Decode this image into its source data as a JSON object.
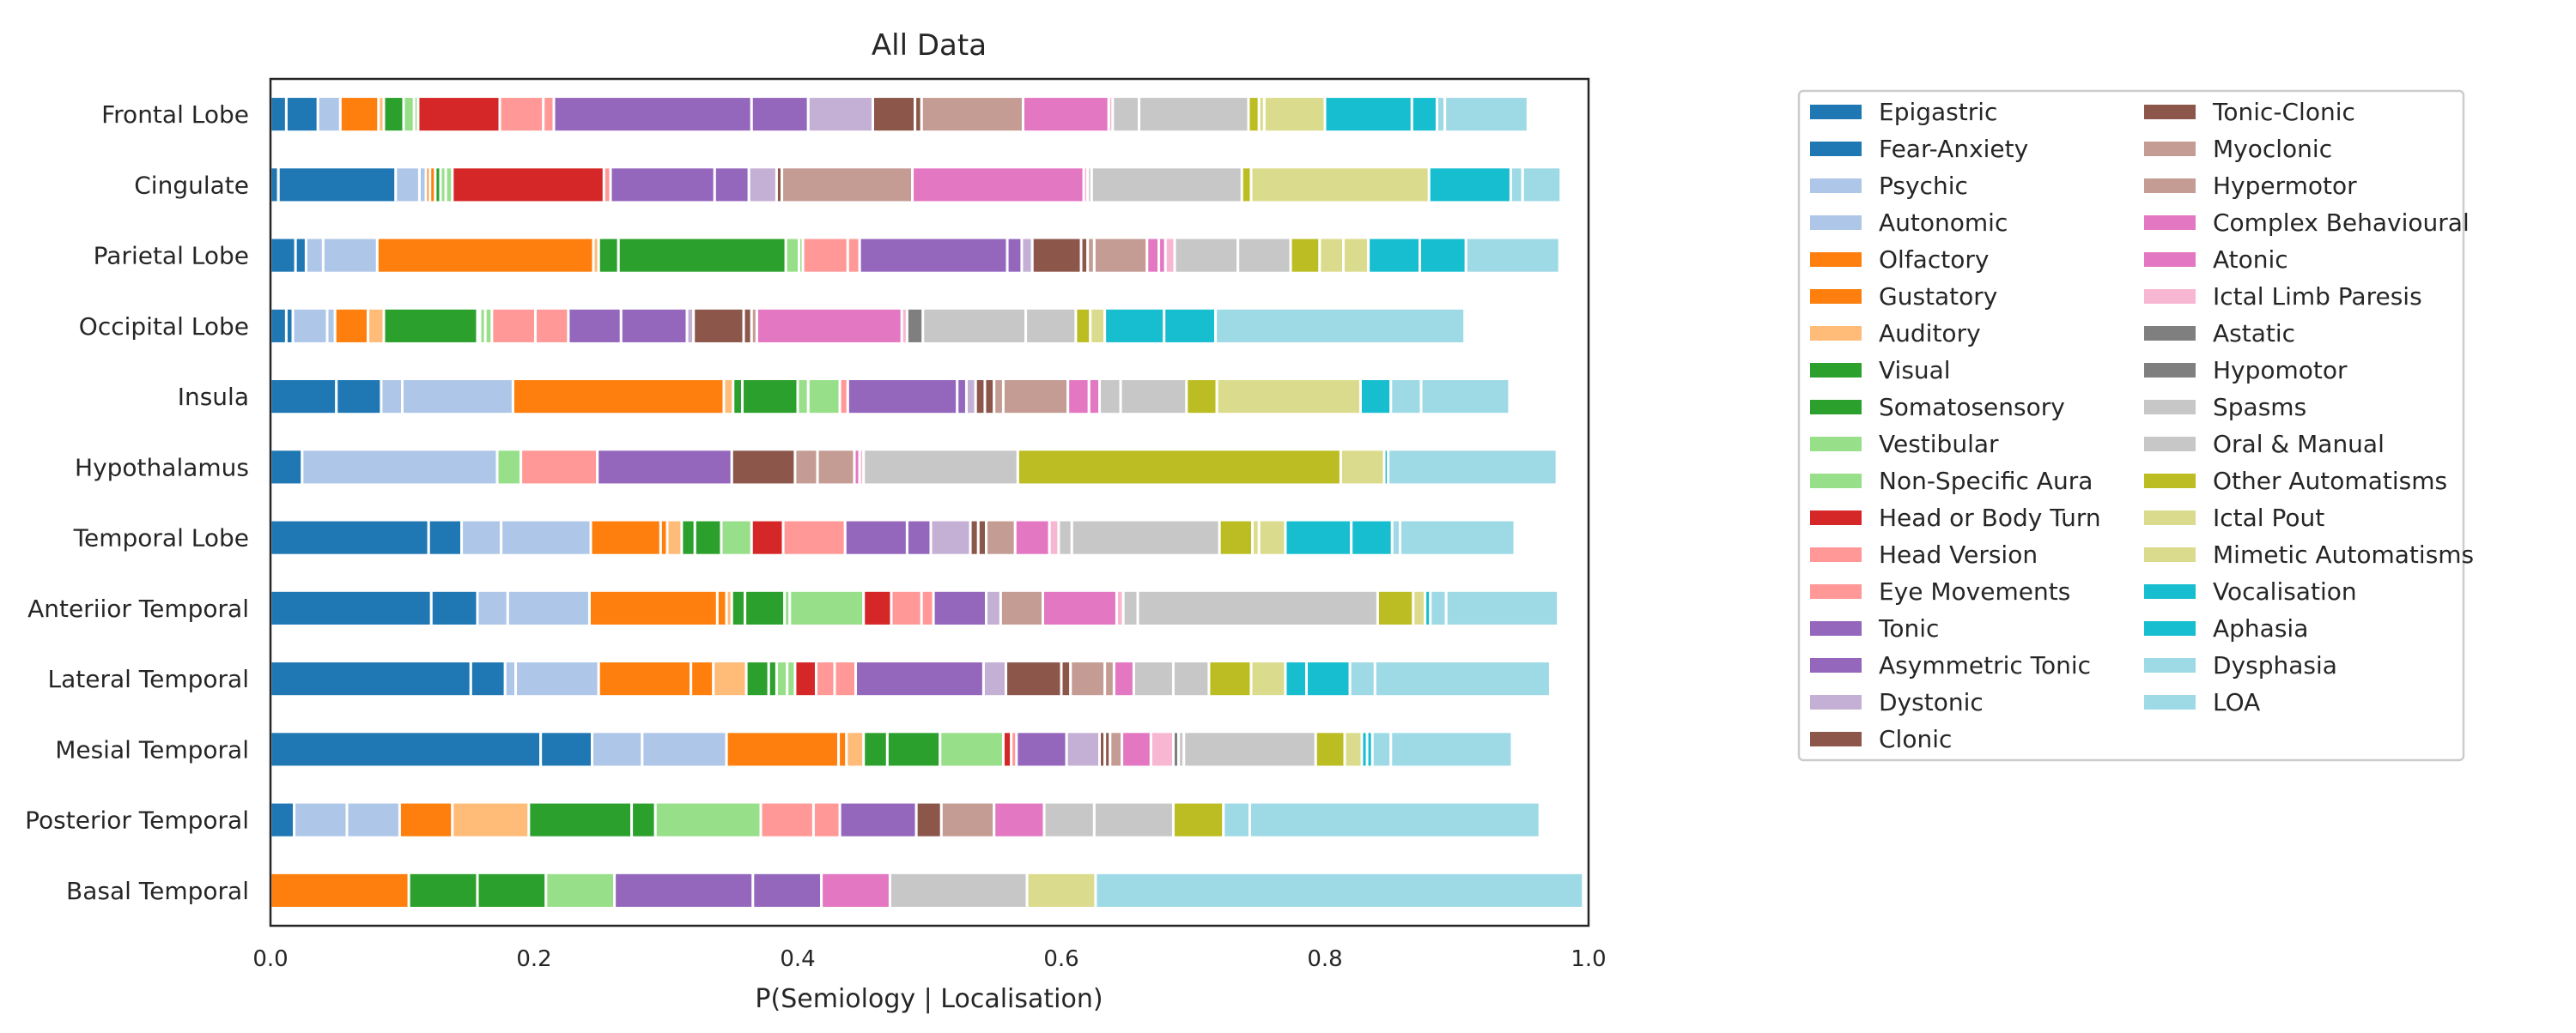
{
  "chart_data": {
    "type": "bar",
    "orientation": "horizontal",
    "stacked": true,
    "title": "All Data",
    "xlabel": "P(Semiology | Localisation)",
    "ylabel": "",
    "xlim": [
      0,
      1
    ],
    "xticks": [
      "0.0",
      "0.2",
      "0.4",
      "0.6",
      "0.8",
      "1.0"
    ],
    "grid": false,
    "legend_position": "right",
    "categories": [
      "Frontal Lobe",
      "Cingulate",
      "Parietal Lobe",
      "Occipital Lobe",
      "Insula",
      "Hypothalamus",
      "Temporal Lobe",
      "Anteriior Temporal",
      "Lateral Temporal",
      "Mesial Temporal",
      "Posterior Temporal",
      "Basal Temporal"
    ],
    "series": [
      {
        "name": "Epigastric",
        "color": "#1f77b4",
        "values": [
          0.012,
          0.006,
          0.019,
          0.012,
          0.05,
          0.024,
          0.12,
          0.122,
          0.152,
          0.205,
          0.018,
          0.0
        ]
      },
      {
        "name": "Fear-Anxiety",
        "color": "#1f77b4",
        "values": [
          0.024,
          0.089,
          0.008,
          0.005,
          0.034,
          0.0,
          0.025,
          0.035,
          0.026,
          0.039,
          0.0,
          0.0
        ]
      },
      {
        "name": "Psychic",
        "color": "#aec7e8",
        "values": [
          0.017,
          0.018,
          0.013,
          0.026,
          0.016,
          0.148,
          0.03,
          0.023,
          0.008,
          0.038,
          0.04,
          0.0
        ]
      },
      {
        "name": "Autonomic",
        "color": "#aec7e8",
        "values": [
          0.0,
          0.005,
          0.041,
          0.006,
          0.084,
          0.0,
          0.068,
          0.062,
          0.063,
          0.064,
          0.04,
          0.0
        ]
      },
      {
        "name": "Olfactory",
        "color": "#ff7f0e",
        "values": [
          0.029,
          0.003,
          0.164,
          0.025,
          0.16,
          0.0,
          0.053,
          0.097,
          0.07,
          0.085,
          0.04,
          0.105
        ]
      },
      {
        "name": "Gustatory",
        "color": "#ff7f0e",
        "values": [
          0.0,
          0.004,
          0.0,
          0.0,
          0.0,
          0.0,
          0.005,
          0.007,
          0.017,
          0.006,
          0.0,
          0.0
        ]
      },
      {
        "name": "Auditory",
        "color": "#ffbb78",
        "values": [
          0.004,
          0.0,
          0.004,
          0.012,
          0.007,
          0.0,
          0.011,
          0.004,
          0.025,
          0.013,
          0.058,
          0.0
        ]
      },
      {
        "name": "Visual",
        "color": "#2ca02c",
        "values": [
          0.015,
          0.004,
          0.015,
          0.071,
          0.007,
          0.0,
          0.01,
          0.01,
          0.017,
          0.018,
          0.078,
          0.052
        ]
      },
      {
        "name": "Somatosensory",
        "color": "#2ca02c",
        "values": [
          0.0,
          0.0,
          0.127,
          0.002,
          0.042,
          0.0,
          0.02,
          0.03,
          0.006,
          0.04,
          0.018,
          0.052
        ]
      },
      {
        "name": "Vestibular",
        "color": "#98df8a",
        "values": [
          0.008,
          0.004,
          0.01,
          0.004,
          0.008,
          0.018,
          0.023,
          0.004,
          0.008,
          0.0,
          0.0,
          0.052
        ]
      },
      {
        "name": "Non-Specific Aura",
        "color": "#98df8a",
        "values": [
          0.003,
          0.005,
          0.003,
          0.005,
          0.024,
          0.0,
          0.0,
          0.056,
          0.006,
          0.048,
          0.08,
          0.0
        ]
      },
      {
        "name": "Head or Body Turn",
        "color": "#d62728",
        "values": [
          0.062,
          0.115,
          0.0,
          0.0,
          0.0,
          0.0,
          0.024,
          0.021,
          0.016,
          0.006,
          0.0,
          0.0
        ]
      },
      {
        "name": "Head Version",
        "color": "#ff9896",
        "values": [
          0.033,
          0.0,
          0.034,
          0.033,
          0.0,
          0.0,
          0.047,
          0.023,
          0.014,
          0.0,
          0.04,
          0.0
        ]
      },
      {
        "name": "Eye Movements",
        "color": "#ff9896",
        "values": [
          0.008,
          0.005,
          0.009,
          0.025,
          0.006,
          0.058,
          0.0,
          0.009,
          0.016,
          0.004,
          0.02,
          0.0
        ]
      },
      {
        "name": "Tonic",
        "color": "#9467bd",
        "values": [
          0.15,
          0.079,
          0.112,
          0.04,
          0.083,
          0.102,
          0.047,
          0.04,
          0.097,
          0.038,
          0.058,
          0.105
        ]
      },
      {
        "name": "Asymmetric Tonic",
        "color": "#9467bd",
        "values": [
          0.043,
          0.026,
          0.011,
          0.05,
          0.007,
          0.0,
          0.018,
          0.0,
          0.0,
          0.0,
          0.0,
          0.052
        ]
      },
      {
        "name": "Dystonic",
        "color": "#c5b0d5",
        "values": [
          0.049,
          0.021,
          0.008,
          0.005,
          0.007,
          0.0,
          0.03,
          0.011,
          0.017,
          0.025,
          0.0,
          0.0
        ]
      },
      {
        "name": "Clonic",
        "color": "#8c564b",
        "values": [
          0.032,
          0.004,
          0.037,
          0.038,
          0.007,
          0.048,
          0.006,
          0.0,
          0.042,
          0.004,
          0.019,
          0.0
        ]
      },
      {
        "name": "Tonic-Clonic",
        "color": "#8c564b",
        "values": [
          0.005,
          0.0,
          0.005,
          0.006,
          0.007,
          0.0,
          0.006,
          0.0,
          0.007,
          0.004,
          0.0,
          0.0
        ]
      },
      {
        "name": "Myoclonic",
        "color": "#c49c94",
        "values": [
          0.0,
          0.0,
          0.005,
          0.004,
          0.007,
          0.017,
          0.022,
          0.032,
          0.026,
          0.0,
          0.0,
          0.0
        ]
      },
      {
        "name": "Hypermotor",
        "color": "#c49c94",
        "values": [
          0.077,
          0.099,
          0.04,
          0.0,
          0.049,
          0.028,
          0.0,
          0.0,
          0.007,
          0.009,
          0.04,
          0.0
        ]
      },
      {
        "name": "Complex Behavioural",
        "color": "#e377c2",
        "values": [
          0.065,
          0.13,
          0.009,
          0.11,
          0.016,
          0.004,
          0.026,
          0.056,
          0.015,
          0.022,
          0.038,
          0.052
        ]
      },
      {
        "name": "Atonic",
        "color": "#e377c2",
        "values": [
          0.0,
          0.0,
          0.005,
          0.0,
          0.008,
          0.0,
          0.0,
          0.0,
          0.0,
          0.0,
          0.0,
          0.0
        ]
      },
      {
        "name": "Ictal Limb Paresis",
        "color": "#f7b6d2",
        "values": [
          0.003,
          0.003,
          0.007,
          0.004,
          0.0,
          0.003,
          0.007,
          0.005,
          0.0,
          0.017,
          0.0,
          0.0
        ]
      },
      {
        "name": "Astatic",
        "color": "#7f7f7f",
        "values": [
          0.0,
          0.0,
          0.0,
          0.0,
          0.0,
          0.0,
          0.0,
          0.0,
          0.0,
          0.0,
          0.0,
          0.0
        ]
      },
      {
        "name": "Hypomotor",
        "color": "#7f7f7f",
        "values": [
          0.0,
          0.0,
          0.0,
          0.012,
          0.0,
          0.0,
          0.0,
          0.0,
          0.0,
          0.004,
          0.0,
          0.0
        ]
      },
      {
        "name": "Spasms",
        "color": "#c7c7c7",
        "values": [
          0.02,
          0.003,
          0.048,
          0.078,
          0.016,
          0.0,
          0.01,
          0.011,
          0.03,
          0.004,
          0.038,
          0.104
        ]
      },
      {
        "name": "Oral & Manual",
        "color": "#c7c7c7",
        "values": [
          0.083,
          0.114,
          0.04,
          0.038,
          0.05,
          0.117,
          0.112,
          0.182,
          0.027,
          0.1,
          0.06,
          0.0
        ]
      },
      {
        "name": "Other Automatisms",
        "color": "#bcbd22",
        "values": [
          0.008,
          0.007,
          0.022,
          0.011,
          0.023,
          0.245,
          0.025,
          0.027,
          0.032,
          0.022,
          0.038,
          0.0
        ]
      },
      {
        "name": "Ictal Pout",
        "color": "#dbdb8d",
        "values": [
          0.004,
          0.0,
          0.018,
          0.011,
          0.0,
          0.0,
          0.005,
          0.009,
          0.026,
          0.013,
          0.0,
          0.052
        ]
      },
      {
        "name": "Mimetic Automatisms",
        "color": "#dbdb8d",
        "values": [
          0.046,
          0.135,
          0.019,
          0.0,
          0.109,
          0.033,
          0.02,
          0.0,
          0.0,
          0.0,
          0.0,
          0.0
        ]
      },
      {
        "name": "Vocalisation",
        "color": "#17becf",
        "values": [
          0.066,
          0.062,
          0.039,
          0.045,
          0.023,
          0.0,
          0.05,
          0.004,
          0.016,
          0.004,
          0.0,
          0.0
        ]
      },
      {
        "name": "Aphasia",
        "color": "#17becf",
        "values": [
          0.019,
          0.0,
          0.035,
          0.039,
          0.0,
          0.003,
          0.031,
          0.0,
          0.033,
          0.004,
          0.0,
          0.0
        ]
      },
      {
        "name": "Dysphasia",
        "color": "#9edae5",
        "values": [
          0.006,
          0.009,
          0.0,
          0.0,
          0.023,
          0.0,
          0.006,
          0.012,
          0.019,
          0.014,
          0.02,
          0.0
        ]
      },
      {
        "name": "LOA",
        "color": "#9edae5",
        "values": [
          0.063,
          0.029,
          0.071,
          0.189,
          0.067,
          0.128,
          0.087,
          0.085,
          0.133,
          0.092,
          0.22,
          0.37
        ]
      }
    ]
  }
}
